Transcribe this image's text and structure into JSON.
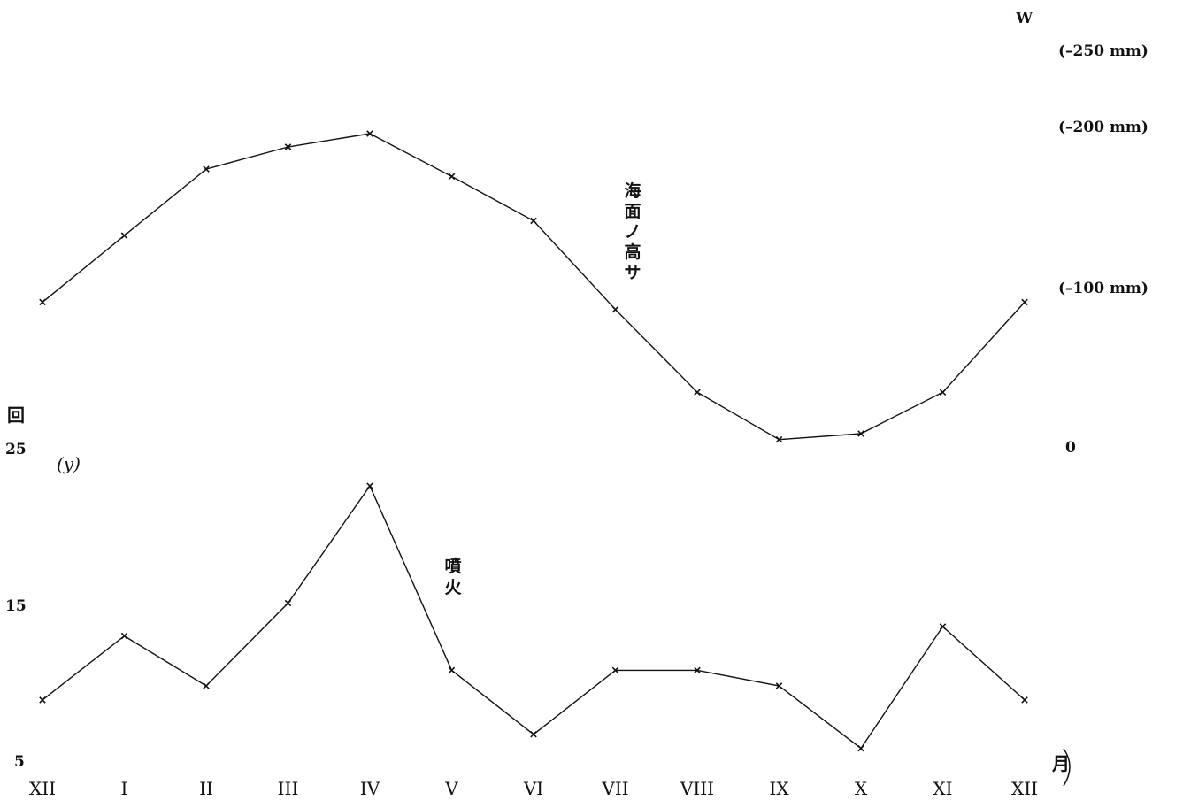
{
  "chart_data": {
    "type": "line",
    "categories": [
      "XII",
      "I",
      "II",
      "III",
      "IV",
      "V",
      "VI",
      "VII",
      "VIII",
      "IX",
      "X",
      "XI",
      "XII"
    ],
    "series": [
      {
        "name": "海面ノ高サ",
        "values": [
          -95,
          -140,
          -185,
          -200,
          -209,
          -180,
          -150,
          -90,
          -34,
          -2,
          -6,
          -34,
          -95
        ],
        "axis": "right",
        "axis_title": "W",
        "ticks": [
          "0",
          "(–100 mm)",
          "(–200 mm)",
          "(–250 mm)"
        ]
      },
      {
        "name": "噴火",
        "values": [
          8.8,
          12.9,
          9.7,
          15,
          22.5,
          10.7,
          6.6,
          10.7,
          10.7,
          9.7,
          5.7,
          13.5,
          8.8
        ],
        "axis": "left",
        "axis_title": "回",
        "axis_var": "(y)",
        "ticks": [
          "25",
          "15",
          "5"
        ]
      }
    ],
    "xunit": "月",
    "grid": false
  }
}
